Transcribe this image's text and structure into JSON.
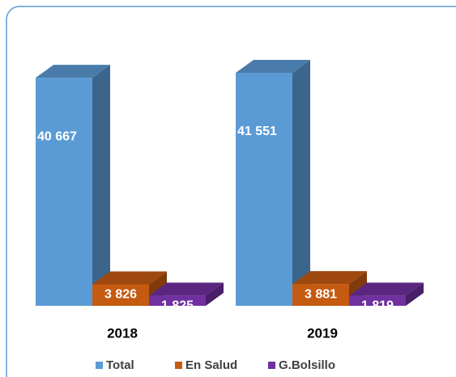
{
  "chart_data": {
    "type": "bar3d",
    "categories": [
      "2018",
      "2019"
    ],
    "series": [
      {
        "name": "Total",
        "color": "#5b9bd5",
        "values": [
          40667,
          41551
        ],
        "value_labels": [
          "40 667",
          "41 551"
        ]
      },
      {
        "name": "En Salud",
        "color": "#c55a11",
        "values": [
          3826,
          3881
        ],
        "value_labels": [
          "3 826",
          "3 881"
        ]
      },
      {
        "name": "G.Bolsillo",
        "color": "#7030a0",
        "values": [
          1825,
          1819
        ],
        "value_labels": [
          "1 825",
          "1 819"
        ]
      }
    ],
    "legend": "bottom"
  }
}
